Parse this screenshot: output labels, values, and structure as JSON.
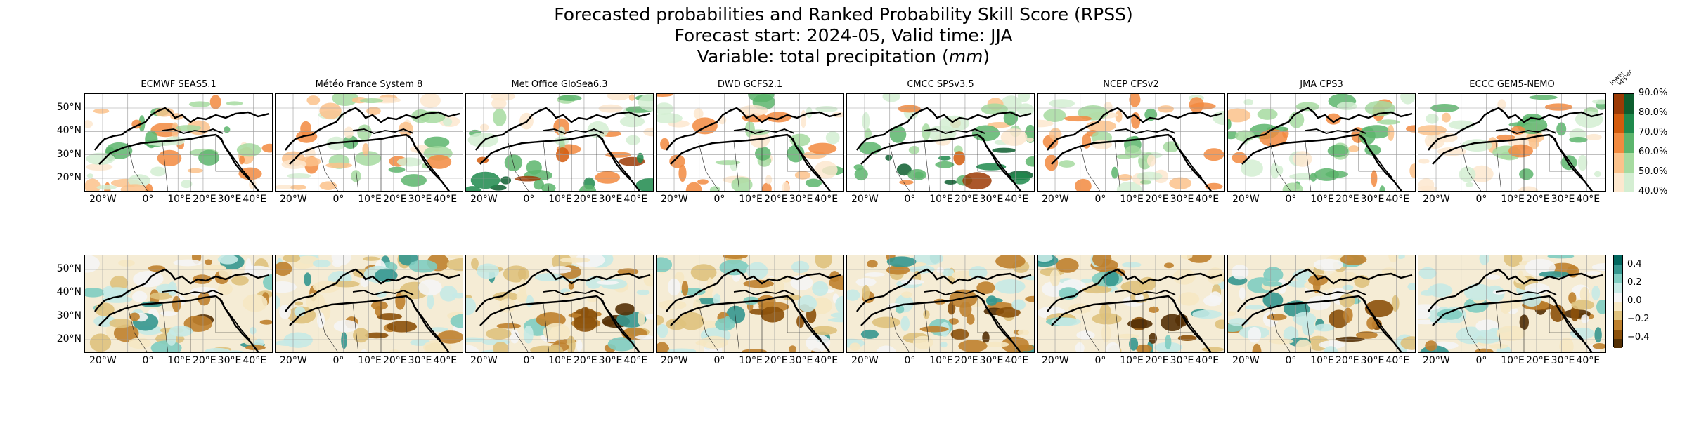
{
  "title": {
    "line1": "Forecasted probabilities and Ranked Probability Skill Score (RPSS)",
    "line2": "Forecast start: 2024-05, Valid time: JJA",
    "line3_prefix": "Variable: total precipitation (",
    "line3_unit": "mm",
    "line3_suffix": ")"
  },
  "models": [
    {
      "name": "ECMWF SEAS5.1"
    },
    {
      "name": "Météo France System 8"
    },
    {
      "name": "Met Office GloSea6.3"
    },
    {
      "name": "DWD GCFS2.1"
    },
    {
      "name": "CMCC SPSv3.5"
    },
    {
      "name": "NCEP CFSv2"
    },
    {
      "name": "JMA CPS3"
    },
    {
      "name": "ECCC GEM5-NEMO"
    }
  ],
  "lat_ticks": [
    "50°N",
    "40°N",
    "30°N",
    "20°N"
  ],
  "lon_ticks": [
    "20°W",
    "0°",
    "10°E",
    "20°E",
    "30°E",
    "40°E"
  ],
  "prob_colorbar": {
    "ticks": [
      "90.0%",
      "80.0%",
      "70.0%",
      "60.0%",
      "50.0%",
      "40.0%"
    ],
    "lower_label": "lower",
    "upper_label": "upper",
    "lower_colors": [
      "#fde8cf",
      "#fbc28b",
      "#f28a3f",
      "#d35b0c",
      "#9c3a05"
    ],
    "upper_colors": [
      "#d4eed2",
      "#a6dba0",
      "#5cb56c",
      "#1f8a4c",
      "#0d5e2f"
    ]
  },
  "rpss_colorbar": {
    "ticks": [
      "0.4",
      "0.2",
      "0.0",
      "−0.2",
      "−0.4"
    ],
    "colors": [
      "#01665e",
      "#35978f",
      "#80cdc1",
      "#c7eae5",
      "#f5f5f5",
      "#f6e8c3",
      "#dfc27d",
      "#bf812d",
      "#8c510a",
      "#543005"
    ]
  },
  "colors": {
    "land_lower": "#f28a3f",
    "land_upper": "#1f8a4c",
    "rpss_negative": "#8c510a",
    "rpss_positive": "#35978f"
  }
}
